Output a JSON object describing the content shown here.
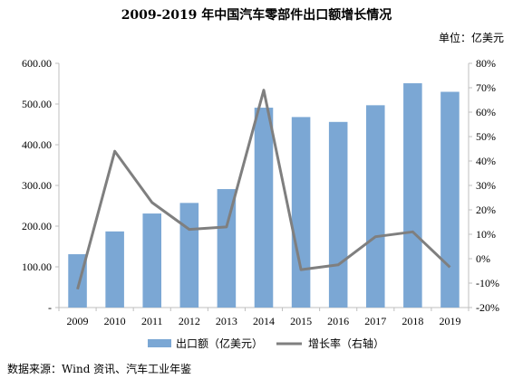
{
  "chart_data": {
    "type": "bar",
    "title": "2009-2019 年中国汽车零部件出口额增长情况",
    "unit_label": "单位：亿美元",
    "categories": [
      "2009",
      "2010",
      "2011",
      "2012",
      "2013",
      "2014",
      "2015",
      "2016",
      "2017",
      "2018",
      "2019"
    ],
    "series": [
      {
        "name": "出口额（亿美元）",
        "type": "bar",
        "axis": "left",
        "color": "#7ba7d4",
        "values": [
          131,
          187,
          231,
          257,
          291,
          491,
          468,
          456,
          497,
          551,
          530
        ]
      },
      {
        "name": "增长率（右轴）",
        "type": "line",
        "axis": "right",
        "color": "#7f7f7f",
        "values": [
          -12.5,
          44,
          23,
          12,
          13,
          69,
          -4.5,
          -2.5,
          9,
          11,
          -3.5
        ]
      }
    ],
    "left_axis": {
      "ylim": [
        0,
        600
      ],
      "ticks": [
        "-",
        "100.00",
        "200.00",
        "300.00",
        "400.00",
        "500.00",
        "600.00"
      ]
    },
    "right_axis": {
      "ylim": [
        -20,
        80
      ],
      "ticks": [
        "-20%",
        "-10%",
        "0%",
        "10%",
        "20%",
        "30%",
        "40%",
        "50%",
        "60%",
        "70%",
        "80%"
      ]
    },
    "grid": false,
    "legend_position": "bottom"
  },
  "source_note": "数据来源：Wind 资讯、汽车工业年鉴"
}
